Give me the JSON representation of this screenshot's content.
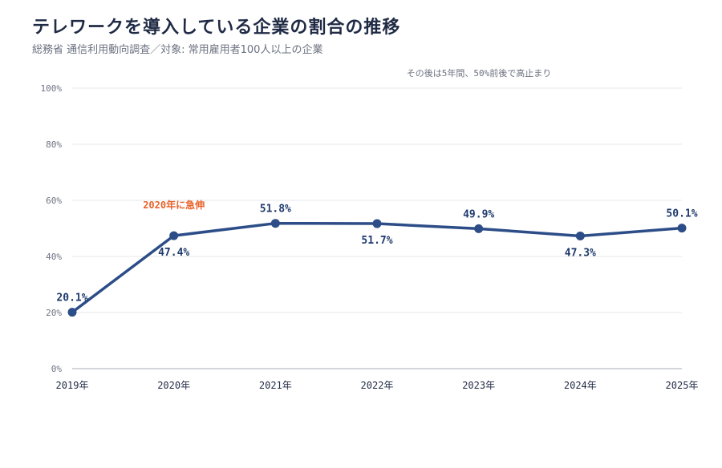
{
  "header": {
    "title": "テレワークを導入している企業の割合の推移",
    "subtitle": "総務省 通信利用動向調査／対象: 常用雇用者100人以上の企業"
  },
  "colors": {
    "line": "#2c4d87",
    "point": "#2c4d87",
    "highlight": "#e8622a",
    "grid": "#e5e7eb",
    "axis": "#b8bcc4",
    "tick": "#6b7280",
    "data_label": "#1f3a6e",
    "annotation": "#6b7280"
  },
  "chart_data": {
    "type": "line",
    "title": "テレワークを導入している企業の割合の推移",
    "subtitle": "総務省 通信利用動向調査／対象: 常用雇用者100人以上の企業",
    "x": [
      "2019年",
      "2020年",
      "2021年",
      "2022年",
      "2023年",
      "2024年",
      "2025年"
    ],
    "series": [
      {
        "values": [
          20.1,
          47.4,
          51.8,
          51.7,
          49.9,
          47.3,
          50.1
        ],
        "labels": [
          "20.1%",
          "47.4%",
          "51.8%",
          "51.7%",
          "49.9%",
          "47.3%",
          "50.1%"
        ],
        "label_side": [
          "above",
          "below",
          "above",
          "below",
          "above",
          "below",
          "above"
        ]
      }
    ],
    "ylim": [
      0,
      100
    ],
    "yticks": [
      0,
      20,
      40,
      60,
      80,
      100
    ],
    "ytick_labels": [
      "0%",
      "20%",
      "40%",
      "60%",
      "80%",
      "100%"
    ],
    "grid": true,
    "annotations": [
      {
        "text": "2020年に急伸",
        "near": "2020年",
        "style": "highlight"
      },
      {
        "text": "その後は5年間、50%前後で高止まり",
        "near": "top",
        "style": "note"
      }
    ]
  }
}
